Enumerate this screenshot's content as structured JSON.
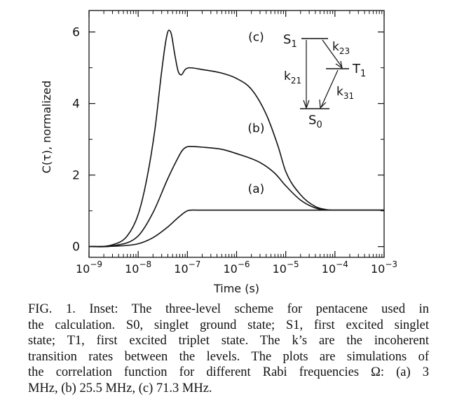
{
  "chart_data": {
    "type": "line",
    "xscale": "log",
    "xlabel": "Time (s)",
    "ylabel": "C(τ), normalized",
    "xlim": [
      1e-09,
      0.001
    ],
    "ylim": [
      -0.3,
      6.6
    ],
    "xticks": [
      1e-09,
      1e-08,
      1e-07,
      1e-06,
      1e-05,
      0.0001,
      0.001
    ],
    "xtick_labels": [
      {
        "base": "10",
        "exp": "−9"
      },
      {
        "base": "10",
        "exp": "−8"
      },
      {
        "base": "10",
        "exp": "−7"
      },
      {
        "base": "10",
        "exp": "−6"
      },
      {
        "base": "10",
        "exp": "−5"
      },
      {
        "base": "10",
        "exp": "−4"
      },
      {
        "base": "10",
        "exp": "−3"
      }
    ],
    "yticks": [
      0,
      2,
      4,
      6
    ],
    "ytick_labels": [
      "0",
      "2",
      "4",
      "6"
    ],
    "series": [
      {
        "name": "(a)",
        "x": [
          1e-09,
          3e-09,
          1e-08,
          2e-08,
          4e-08,
          7e-08,
          1e-07,
          1.5e-07,
          1e-06,
          1e-05,
          0.0001,
          0.001
        ],
        "y": [
          0,
          0.01,
          0.08,
          0.25,
          0.55,
          0.85,
          1.0,
          1.02,
          1.02,
          1.02,
          1.02,
          1.02
        ]
      },
      {
        "name": "(b)",
        "x": [
          1e-09,
          3e-09,
          1e-08,
          2e-08,
          4e-08,
          6e-08,
          8e-08,
          1.1e-07,
          2e-07,
          5e-07,
          1e-06,
          3e-06,
          6e-06,
          1e-05,
          2e-05,
          4e-05,
          7e-05,
          0.0001,
          0.001
        ],
        "y": [
          0,
          0.02,
          0.3,
          0.95,
          1.9,
          2.4,
          2.7,
          2.8,
          2.78,
          2.72,
          2.6,
          2.35,
          2.05,
          1.7,
          1.3,
          1.08,
          1.02,
          1.02,
          1.02
        ]
      },
      {
        "name": "(c)",
        "x": [
          1e-09,
          3e-09,
          6e-09,
          1e-08,
          1.5e-08,
          2.2e-08,
          3e-08,
          3.7e-08,
          4.2e-08,
          4.7e-08,
          5.5e-08,
          6.5e-08,
          7.5e-08,
          9e-08,
          1.1e-07,
          2e-07,
          5e-07,
          1e-06,
          2e-06,
          4e-06,
          7e-06,
          1e-05,
          2e-05,
          4e-05,
          7e-05,
          0.0001,
          0.001
        ],
        "y": [
          0,
          0.05,
          0.3,
          0.9,
          1.9,
          3.3,
          4.9,
          5.8,
          6.05,
          5.95,
          5.4,
          4.9,
          4.8,
          4.95,
          5.0,
          4.95,
          4.85,
          4.7,
          4.4,
          3.7,
          2.8,
          2.1,
          1.45,
          1.12,
          1.03,
          1.02,
          1.02
        ]
      }
    ],
    "series_labels": [
      {
        "text": "(a)",
        "x": 2.5e-06,
        "y": 1.5
      },
      {
        "text": "(b)",
        "x": 2.5e-06,
        "y": 3.2
      },
      {
        "text": "(c)",
        "x": 2.5e-06,
        "y": 5.75
      }
    ],
    "inset": {
      "levels": [
        {
          "symbol": "S",
          "sub": "1"
        },
        {
          "symbol": "T",
          "sub": "1"
        },
        {
          "symbol": "S",
          "sub": "0"
        }
      ],
      "rates": [
        {
          "symbol": "k",
          "sub": "23"
        },
        {
          "symbol": "k",
          "sub": "21"
        },
        {
          "symbol": "k",
          "sub": "31"
        }
      ]
    }
  },
  "caption": {
    "lines": [
      "FIG. 1. Inset: The three-level scheme for pentacene used in",
      "the calculation. S0, singlet ground state; S1, first excited singlet",
      "state; T1, first excited triplet state. The k’s are the incoherent",
      "transition rates between the levels. The plots are simulations of",
      "the correlation function for different Rabi frequencies Ω: (a) 3",
      "MHz, (b) 25.5 MHz, (c) 71.3 MHz."
    ]
  }
}
